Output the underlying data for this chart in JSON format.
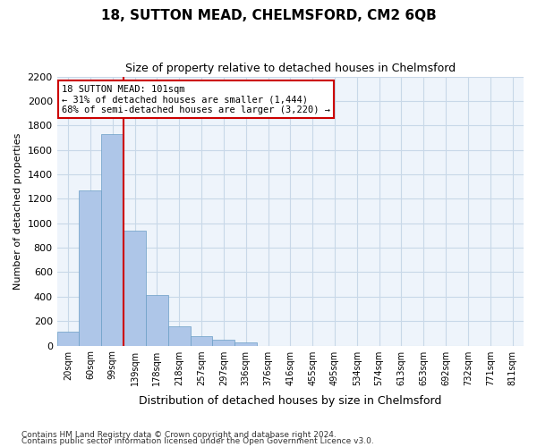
{
  "title": "18, SUTTON MEAD, CHELMSFORD, CM2 6QB",
  "subtitle": "Size of property relative to detached houses in Chelmsford",
  "xlabel": "Distribution of detached houses by size in Chelmsford",
  "ylabel": "Number of detached properties",
  "footnote1": "Contains HM Land Registry data © Crown copyright and database right 2024.",
  "footnote2": "Contains public sector information licensed under the Open Government Licence v3.0.",
  "bin_labels": [
    "20sqm",
    "60sqm",
    "99sqm",
    "139sqm",
    "178sqm",
    "218sqm",
    "257sqm",
    "297sqm",
    "336sqm",
    "376sqm",
    "416sqm",
    "455sqm",
    "495sqm",
    "534sqm",
    "574sqm",
    "613sqm",
    "653sqm",
    "692sqm",
    "732sqm",
    "771sqm",
    "811sqm"
  ],
  "bar_heights": [
    110,
    1270,
    1730,
    940,
    415,
    155,
    80,
    45,
    25,
    0,
    0,
    0,
    0,
    0,
    0,
    0,
    0,
    0,
    0,
    0,
    0
  ],
  "bar_color": "#aec6e8",
  "bar_edge_color": "#6a9ec5",
  "grid_color": "#c8d8e8",
  "background_color": "#eef4fb",
  "vline_x": 2.5,
  "annotation_text": "18 SUTTON MEAD: 101sqm\n← 31% of detached houses are smaller (1,444)\n68% of semi-detached houses are larger (3,220) →",
  "annotation_box_color": "#ffffff",
  "annotation_box_edge": "#cc0000",
  "vline_color": "#cc0000",
  "ylim_max": 2200,
  "yticks": [
    0,
    200,
    400,
    600,
    800,
    1000,
    1200,
    1400,
    1600,
    1800,
    2000,
    2200
  ]
}
